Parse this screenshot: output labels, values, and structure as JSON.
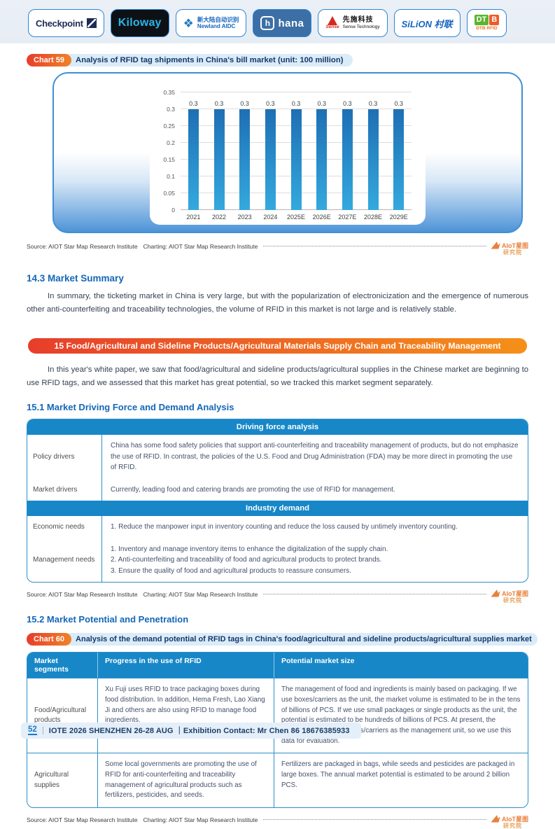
{
  "logo_bar": {
    "checkpoint": {
      "text": "Checkpoint"
    },
    "kiloway": {
      "text": "Kiloway"
    },
    "newland": {
      "line1": "新大陆自动识别",
      "line2": "Newland AIDC"
    },
    "hana": {
      "icon_letter": "h",
      "text": "hana"
    },
    "sense": {
      "brand": "Sense",
      "line1": "先施科技",
      "line2": "Sense Technology"
    },
    "silion": {
      "text": "SiLiON 村联"
    },
    "dtb": {
      "dt": "DT",
      "b": "B",
      "sub": "DTB RFID"
    }
  },
  "watermark": {
    "line1": "AIoT星图",
    "line2": "研究院"
  },
  "source": {
    "source_label": "Source: AIOT Star Map Research Institute",
    "charting_label": "Charting: AIOT Star Map Research Institute"
  },
  "chart59": {
    "badge": "Chart 59",
    "title": "Analysis of RFID tag shipments in China's bill market (unit: 100 million)"
  },
  "chart_data": {
    "type": "bar",
    "title": "Analysis of RFID tag shipments in China's bill market (unit: 100 million)",
    "categories": [
      "2021",
      "2022",
      "2023",
      "2024",
      "2025E",
      "2026E",
      "2027E",
      "2028E",
      "2029E"
    ],
    "values": [
      0.3,
      0.3,
      0.3,
      0.3,
      0.3,
      0.3,
      0.3,
      0.3,
      0.3
    ],
    "xlabel": "",
    "ylabel": "",
    "ylim": [
      0,
      0.35
    ],
    "yticks": [
      0,
      0.05,
      0.1,
      0.15,
      0.2,
      0.25,
      0.3,
      0.35
    ],
    "grid": true,
    "legend": false,
    "bar_color_top": "#1e6fb3",
    "bar_color_bottom": "#34a9de"
  },
  "section_14_3": {
    "heading": "14.3 Market Summary",
    "paragraph": "In summary, the ticketing market in China is very large, but with the popularization of electronicization and the emergence of numerous other anti-counterfeiting and traceability technologies, the volume of RFID in this market is not large and is relatively stable."
  },
  "section_15": {
    "banner": "15 Food/Agricultural and Sideline Products/Agricultural Materials Supply Chain and Traceability Management",
    "paragraph": "In this year's white paper, we saw that food/agricultural and sideline products/agricultural supplies in the Chinese market are beginning to use RFID tags, and we assessed that this market has great potential, so we tracked this market segment separately."
  },
  "section_15_1": {
    "heading": "15.1 Market Driving Force and Demand Analysis",
    "table": {
      "band1": "Driving force analysis",
      "rows1": [
        {
          "label": "Policy drivers",
          "text": "China has some food safety policies that support anti-counterfeiting and traceability management of products, but do not emphasize the use of RFID. In contrast, the policies of the U.S. Food and Drug Administration (FDA) may be more direct in promoting the use of RFID."
        },
        {
          "label": "Market drivers",
          "text": "Currently, leading food and catering brands are promoting the use of RFID for management."
        }
      ],
      "band2": "Industry demand",
      "rows2": [
        {
          "label": "Economic needs",
          "text": "1. Reduce the manpower input in inventory counting and reduce the loss caused by untimely inventory counting."
        },
        {
          "label": "Management needs",
          "text": "1. Inventory and manage inventory items to enhance the digitalization of the supply chain.\n2. Anti-counterfeiting and traceability of food and agricultural products to protect brands.\n3. Ensure the quality of food and agricultural products to reassure consumers."
        }
      ]
    }
  },
  "section_15_2": {
    "heading": "15.2 Market Potential and Penetration",
    "chart60": {
      "badge": "Chart 60",
      "title": "Analysis of the demand potential of RFID tags in China's food/agricultural and sideline products/agricultural supplies market"
    },
    "table": {
      "headers": [
        "Market segments",
        "Progress in the use of RFID",
        "Potential market size"
      ],
      "rows": [
        {
          "segment": "Food/Agricultural products",
          "progress": "Xu Fuji uses RFID to trace packaging boxes during food distribution. In addition, Hema Fresh, Lao Xiang Ji and others are also using RFID to manage food ingredients.",
          "potential": "The management of food and ingredients is mainly based on packaging. If we use boxes/carriers as the unit, the market volume is estimated to be in the tens of billions of PCS. If we use small packages or single products as the unit, the potential is estimated to be hundreds of billions of PCS. At present, the industry mostly uses boxes/carriers as the management unit, so we use this data for evaluation."
        },
        {
          "segment": "Agricultural supplies",
          "progress": "Some local governments are promoting the use of RFID for anti-counterfeiting and traceability management of agricultural products such as fertilizers, pesticides, and seeds.",
          "potential": "Fertilizers are packaged in bags, while seeds and pesticides are packaged in large boxes. The annual market potential is estimated to be around 2 billion PCS."
        }
      ]
    }
  },
  "footer": {
    "page_number": "52",
    "text": "IOTE 2026 SHENZHEN 26-28 AUG ｜Exhibition Contact: Mr Chen 86 18676385933"
  }
}
